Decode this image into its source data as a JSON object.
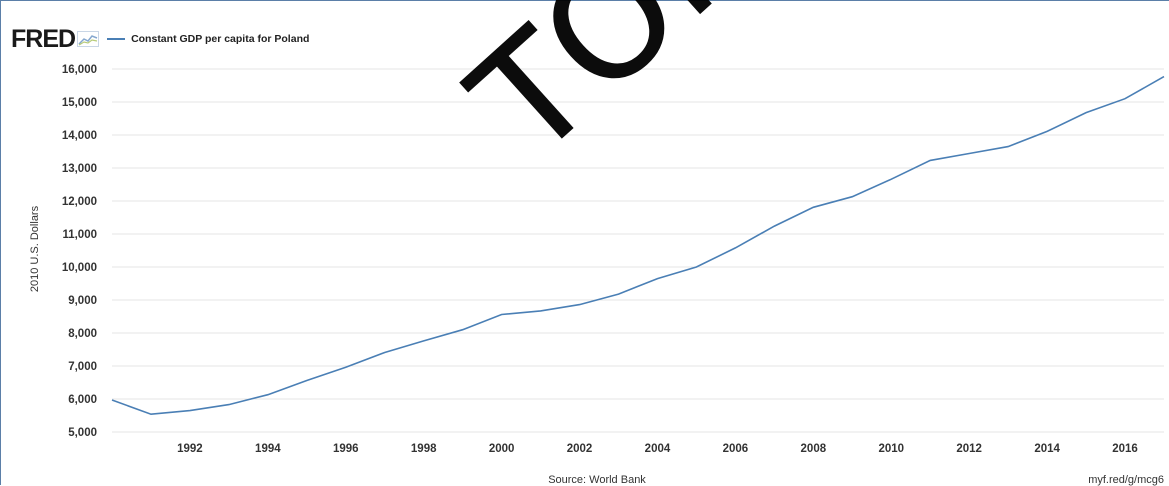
{
  "header": {
    "logo": "FRED",
    "legend_label": "Constant GDP per capita for Poland"
  },
  "colors": {
    "series": "#4a7fb5",
    "frame": "#5b7fa8"
  },
  "chart_data": {
    "type": "line",
    "title": "",
    "ylabel": "2010 U.S. Dollars",
    "xlabel": "",
    "ylim": [
      5000,
      16000
    ],
    "xlim": [
      1990,
      2017
    ],
    "yticks": [
      {
        "value": 5000,
        "label": "5,000"
      },
      {
        "value": 6000,
        "label": "6,000"
      },
      {
        "value": 7000,
        "label": "7,000"
      },
      {
        "value": 8000,
        "label": "8,000"
      },
      {
        "value": 9000,
        "label": "9,000"
      },
      {
        "value": 10000,
        "label": "10,000"
      },
      {
        "value": 11000,
        "label": "11,000"
      },
      {
        "value": 12000,
        "label": "12,000"
      },
      {
        "value": 13000,
        "label": "13,000"
      },
      {
        "value": 14000,
        "label": "14,000"
      },
      {
        "value": 15000,
        "label": "15,000"
      },
      {
        "value": 16000,
        "label": "16,000"
      }
    ],
    "xticks": [
      {
        "value": 1992,
        "label": "1992"
      },
      {
        "value": 1994,
        "label": "1994"
      },
      {
        "value": 1996,
        "label": "1996"
      },
      {
        "value": 1998,
        "label": "1998"
      },
      {
        "value": 2000,
        "label": "2000"
      },
      {
        "value": 2002,
        "label": "2002"
      },
      {
        "value": 2004,
        "label": "2004"
      },
      {
        "value": 2006,
        "label": "2006"
      },
      {
        "value": 2008,
        "label": "2008"
      },
      {
        "value": 2010,
        "label": "2010"
      },
      {
        "value": 2012,
        "label": "2012"
      },
      {
        "value": 2014,
        "label": "2014"
      },
      {
        "value": 2016,
        "label": "2016"
      }
    ],
    "grid": true,
    "legend_placement": "top-left",
    "series": [
      {
        "name": "Constant GDP per capita for Poland",
        "x": [
          1990,
          1991,
          1992,
          1993,
          1994,
          1995,
          1996,
          1997,
          1998,
          1999,
          2000,
          2001,
          2002,
          2003,
          2004,
          2005,
          2006,
          2007,
          2008,
          2009,
          2010,
          2011,
          2012,
          2013,
          2014,
          2015,
          2016,
          2017
        ],
        "y": [
          5970,
          5540,
          5650,
          5830,
          6130,
          6560,
          6960,
          7410,
          7760,
          8100,
          8560,
          8670,
          8860,
          9180,
          9650,
          10000,
          10580,
          11240,
          11810,
          12130,
          12660,
          13230,
          13440,
          13650,
          14110,
          14680,
          15100,
          15770
        ]
      }
    ]
  },
  "footer": {
    "source": "Source: World Bank",
    "link": "myf.red/g/mcg6"
  },
  "watermark": {
    "text": "ТОРИЙ БГУ"
  }
}
